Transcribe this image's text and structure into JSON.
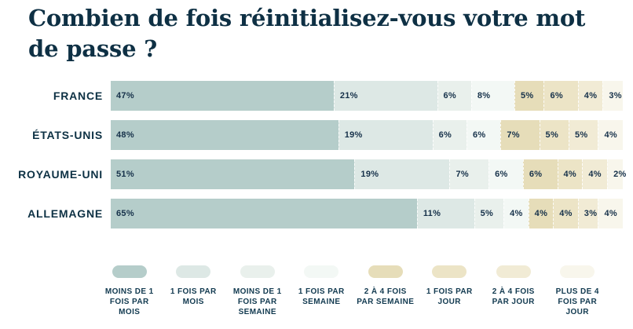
{
  "title": {
    "line1": "Combien de fois réinitialisez-vous votre mot",
    "line2": "de passe ?",
    "full": "Combien de fois réinitialisez-vous votre mot de passe ?"
  },
  "chart_data": {
    "type": "bar",
    "stacked": true,
    "orientation": "horizontal",
    "title": "Combien de fois réinitialisez-vous votre mot de passe ?",
    "categories": [
      "FRANCE",
      "ÉTATS-UNIS",
      "ROYAUME-UNI",
      "ALLEMAGNE"
    ],
    "series": [
      {
        "name": "MOINS DE 1 FOIS PAR MOIS",
        "color": "#b5cdca",
        "values": [
          47,
          48,
          51,
          65
        ]
      },
      {
        "name": "1 FOIS PAR MOIS",
        "color": "#dde8e5",
        "values": [
          21,
          19,
          19,
          11
        ]
      },
      {
        "name": "MOINS DE 1 FOIS PAR SEMAINE",
        "color": "#e9f0ec",
        "values": [
          6,
          6,
          7,
          5
        ]
      },
      {
        "name": "1 FOIS PAR SEMAINE",
        "color": "#f3f8f5",
        "values": [
          8,
          6,
          6,
          4
        ]
      },
      {
        "name": "2 À 4 FOIS PAR SEMAINE",
        "color": "#e6ddb9",
        "values": [
          5,
          7,
          6,
          4
        ]
      },
      {
        "name": "1 FOIS PAR JOUR",
        "color": "#ece4c6",
        "values": [
          6,
          5,
          4,
          4
        ]
      },
      {
        "name": "2 À 4 FOIS PAR JOUR",
        "color": "#f1ebd5",
        "values": [
          4,
          5,
          4,
          3
        ]
      },
      {
        "name": "PLUS DE 4 FOIS PAR JOUR",
        "color": "#f8f6ec",
        "values": [
          3,
          4,
          2,
          4
        ]
      }
    ],
    "value_suffix": "%",
    "xlim": [
      0,
      100
    ],
    "grid": false,
    "legend_position": "bottom"
  },
  "colors": {
    "background": "#ffffff",
    "title_text": "#0e3044",
    "category_text": "#0d3144",
    "value_text": "#16314a",
    "legend_text": "#123a50"
  }
}
